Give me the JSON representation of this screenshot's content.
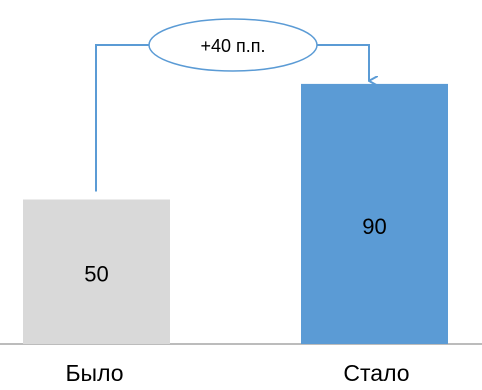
{
  "chart_data": {
    "type": "bar",
    "categories": [
      "Было",
      "Стало"
    ],
    "values": [
      50,
      90
    ],
    "data_labels": [
      "50",
      "90"
    ],
    "ylim": [
      0,
      100
    ],
    "bar_colors": [
      "#d9d9d9",
      "#5b9bd5"
    ],
    "axis_color": "#a6a6a6",
    "annotation": {
      "text": "+40 п.п.",
      "shape": "ellipse",
      "color": "#5b9bd5"
    }
  }
}
